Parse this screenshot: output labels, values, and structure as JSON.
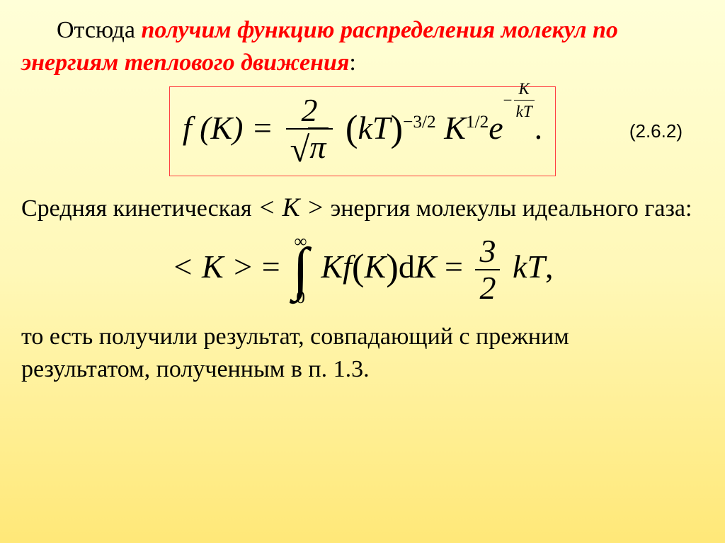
{
  "intro": {
    "lead": "Отсюда ",
    "emphasis": "получим функцию распределения молекул по энергиям теплового движения",
    "tail": ":"
  },
  "equation1": {
    "lhs": "f (K)",
    "eq": " = ",
    "frac_num": "2",
    "frac_den_radicand": "π",
    "kT": "kT",
    "exp1": "−3/2",
    "K": "K",
    "exp2": "1/2",
    "e": "e",
    "supfrac_neg": "−",
    "supfrac_num": "K",
    "supfrac_den": "kT",
    "period": ".",
    "label": "(2.6.2)"
  },
  "para2": {
    "t1": "Средняя кинетическая ",
    "angK": "< K >",
    "t2": "  энергия молекулы идеального газа:"
  },
  "equation2": {
    "angK": "< K > ",
    "eq1": " = ",
    "int_upper": "∞",
    "int_lower": "0",
    "Kf": "Kf",
    "K": "K",
    "d": "d",
    "K2": "K",
    "eq2": " = ",
    "frac_num": "3",
    "frac_den": "2",
    "kT": "kT",
    "tail": ","
  },
  "para3": {
    "text": "то есть получили результат, совпадающий с прежним результатом, полученным в п. 1.3."
  },
  "colors": {
    "bg_top": "#ffffd8",
    "bg_mid": "#fff8b8",
    "bg_bottom": "#ffe878",
    "text": "#000000",
    "emphasis": "#ff0000",
    "box_border": "#ff4040"
  }
}
